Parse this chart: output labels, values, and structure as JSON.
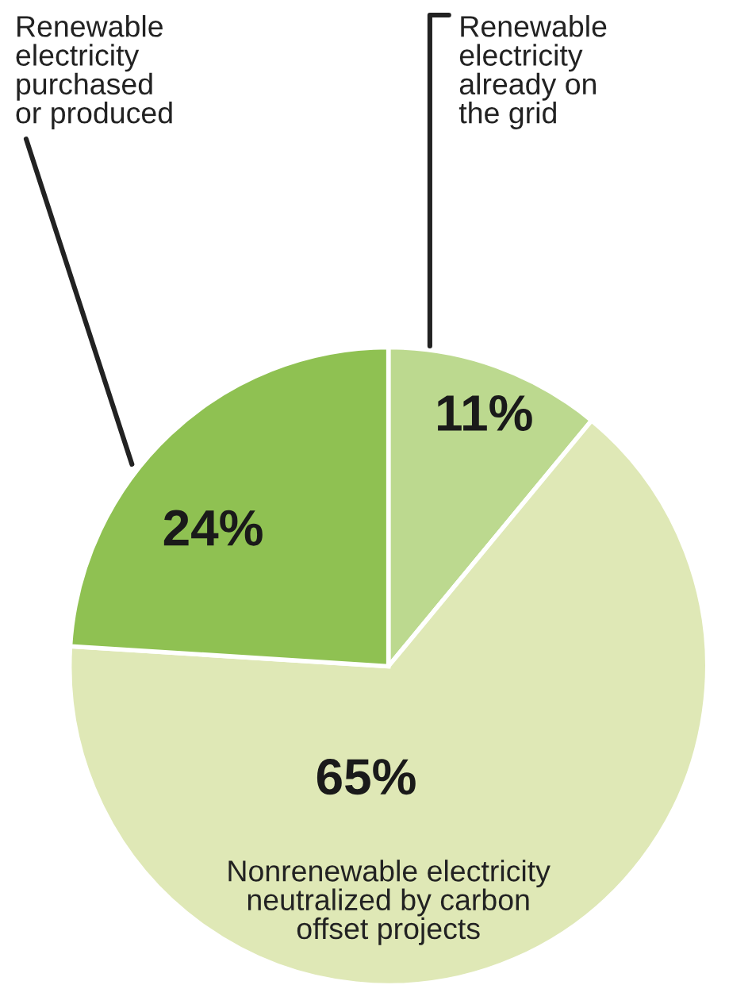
{
  "chart_data": {
    "type": "pie",
    "categories": [
      "Renewable electricity already on the grid",
      "Nonrenewable electricity neutralized by carbon offset projects",
      "Renewable electricity purchased or produced"
    ],
    "values": [
      11,
      65,
      24
    ],
    "value_labels": [
      "11%",
      "65%",
      "24%"
    ],
    "colors": [
      "#bcd98f",
      "#dfe8b6",
      "#8fc152"
    ]
  }
}
